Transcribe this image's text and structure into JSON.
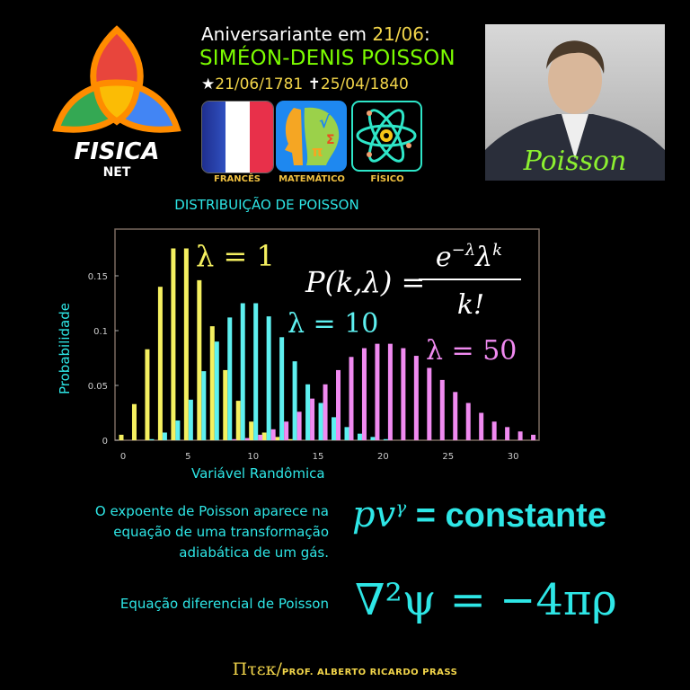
{
  "logo": {
    "text_main": "FISICA",
    "text_sub": "NET"
  },
  "header": {
    "intro": "Aniversariante em ",
    "date": "21/06",
    "colon": ":",
    "name": "SIMÉON-DENIS POISSON",
    "birth_icon": "star-icon",
    "birth": "21/06/1781",
    "death_icon": "cross-icon",
    "death": "25/04/1840"
  },
  "tiles": [
    {
      "icon": "france-flag-icon",
      "label": "FRANCÊS"
    },
    {
      "icon": "mathematician-head-icon",
      "label": "MATEMÁTICO"
    },
    {
      "icon": "atom-icon",
      "label": "FÍSICO"
    }
  ],
  "portrait": {
    "signature": "Poisson"
  },
  "section_title": "DISTRIBUIÇÃO DE POISSON",
  "chart_data": {
    "type": "bar",
    "title": "",
    "xlabel": "Variável Randômica",
    "ylabel": "Probabilidade",
    "xlim": [
      0,
      31
    ],
    "ylim": [
      0,
      0.19
    ],
    "xticks": [
      "0",
      "5",
      "10",
      "15",
      "20",
      "25",
      "30"
    ],
    "yticks": [
      "0",
      "0.05",
      "0.1",
      "0.15"
    ],
    "formula": {
      "lhs": "P(k,λ) =",
      "numerator": "e^{-λ} λ^k",
      "denominator": "k!"
    },
    "series": [
      {
        "name": "λ = 1",
        "color": "#f5f060",
        "x": [
          0,
          1,
          2,
          3,
          4,
          5,
          6,
          7,
          8,
          9,
          10,
          11,
          12,
          13
        ],
        "values": [
          0.005,
          0.033,
          0.083,
          0.14,
          0.175,
          0.175,
          0.146,
          0.104,
          0.064,
          0.036,
          0.017,
          0.007,
          0.003,
          0.001
        ]
      },
      {
        "name": "λ = 10",
        "color": "#5ef0f0",
        "x": [
          2,
          3,
          4,
          5,
          6,
          7,
          8,
          9,
          10,
          11,
          12,
          13,
          14,
          15,
          16,
          17,
          18,
          19,
          20
        ],
        "values": [
          0.001,
          0.007,
          0.018,
          0.037,
          0.063,
          0.09,
          0.112,
          0.125,
          0.125,
          0.113,
          0.094,
          0.072,
          0.051,
          0.034,
          0.021,
          0.012,
          0.006,
          0.003,
          0.001
        ]
      },
      {
        "name": "λ = 50",
        "color": "#f08af0",
        "x": [
          8,
          9,
          10,
          11,
          12,
          13,
          14,
          15,
          16,
          17,
          18,
          19,
          20,
          21,
          22,
          23,
          24,
          25,
          26,
          27,
          28,
          29,
          30,
          31
        ],
        "values": [
          0.001,
          0.002,
          0.005,
          0.01,
          0.017,
          0.026,
          0.038,
          0.051,
          0.064,
          0.076,
          0.084,
          0.088,
          0.088,
          0.084,
          0.077,
          0.066,
          0.055,
          0.044,
          0.034,
          0.025,
          0.017,
          0.012,
          0.008,
          0.005
        ]
      }
    ],
    "grid": false
  },
  "adiabatic": {
    "text": "O expoente de Poisson aparece na equação de uma transformação adiabática de um gás.",
    "lines": [
      "O expoente de Poisson aparece na",
      "equação de uma transformação",
      "adiabática de um gás."
    ],
    "formula_lhs": "pv",
    "formula_exp": "γ",
    "formula_eq": " = ",
    "formula_rhs": "constante"
  },
  "poisson_eq": {
    "label": "Equação diferencial de Poisson",
    "formula": "∇²ψ = −4πρ"
  },
  "footer": {
    "brand": "Πτεκ/",
    "author": "PROF. ALBERTO RICARDO PRASS"
  }
}
